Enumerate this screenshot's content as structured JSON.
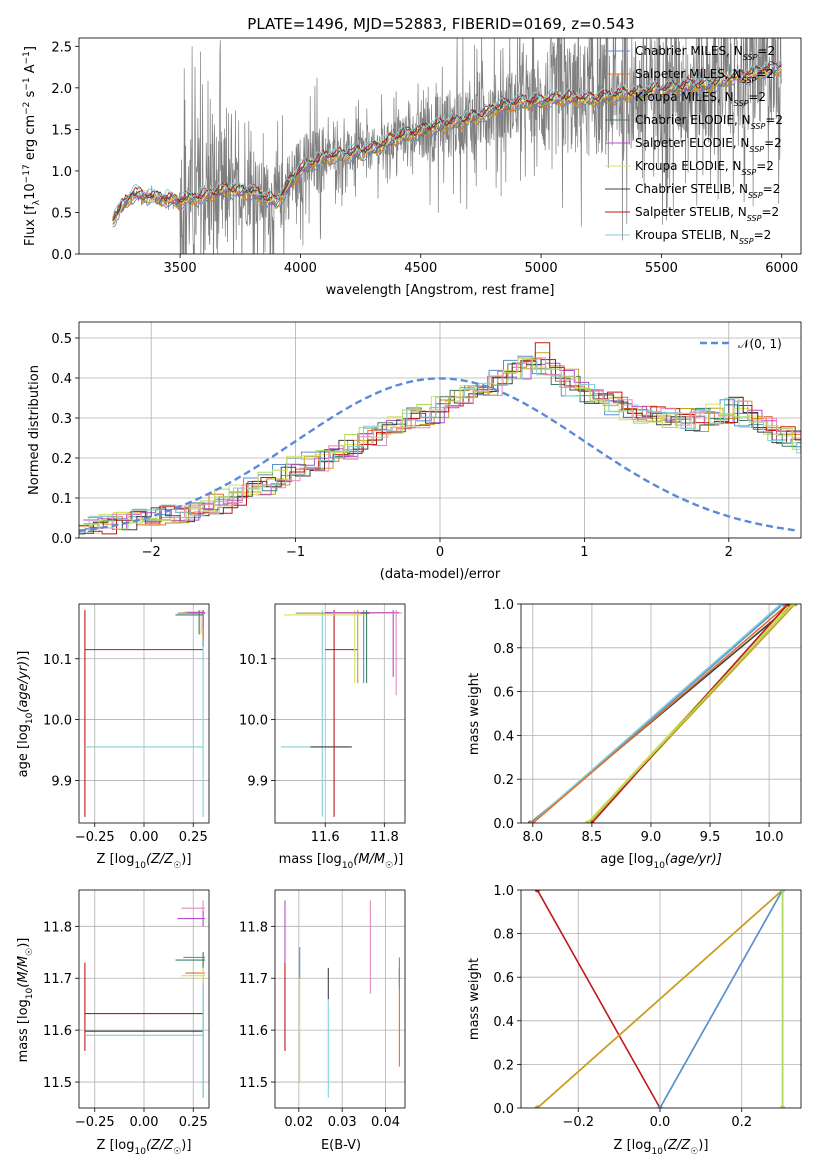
{
  "title": "PLATE=1496, MJD=52883, FIBERID=0169, z=0.543",
  "colors": {
    "Chabrier MILES": "#5a8fd0",
    "Salpeter MILES": "#e0702a",
    "Kroupa MILES": "#c8a020",
    "Chabrier ELODIE": "#3e7e68",
    "Salpeter ELODIE": "#b44ec8",
    "Kroupa ELODIE": "#d8e060",
    "Chabrier STELIB": "#404040",
    "Salpeter STELIB": "#c01818",
    "Kroupa STELIB": "#80d0d8",
    "pink": "#e888b8",
    "lime": "#b0d860",
    "data": "#7f7f7f",
    "normal": "#5b8bd6"
  },
  "chart_data": [
    {
      "id": "spectrum",
      "type": "line",
      "xlabel": "wavelength [Angstrom, rest frame]",
      "ylabel": "Flux [f_λ 10^-17 erg cm^-2 s^-1 A^-1]",
      "xlim": [
        3080,
        6080
      ],
      "ylim": [
        0,
        2.6
      ],
      "xticks": [
        3500,
        4000,
        4500,
        5000,
        5500,
        6000
      ],
      "yticks": [
        0.0,
        0.5,
        1.0,
        1.5,
        2.0,
        2.5
      ],
      "grid": false,
      "legend_position": "top-right",
      "legend": [
        {
          "pre": "Chabrier MILES, N",
          "sub": "SSP",
          "post": "=2",
          "color": "Chabrier MILES"
        },
        {
          "pre": "Salpeter MILES, N",
          "sub": "SSP",
          "post": "=2",
          "color": "Salpeter MILES"
        },
        {
          "pre": "Kroupa MILES, N",
          "sub": "SSP",
          "post": "=2",
          "color": "Kroupa MILES"
        },
        {
          "pre": "Chabrier ELODIE, N",
          "sub": "SSP",
          "post": "=2",
          "color": "Chabrier ELODIE"
        },
        {
          "pre": "Salpeter ELODIE, N",
          "sub": "SSP",
          "post": "=2",
          "color": "Salpeter ELODIE"
        },
        {
          "pre": "Kroupa ELODIE, N",
          "sub": "SSP",
          "post": "=2",
          "color": "Kroupa ELODIE"
        },
        {
          "pre": "Chabrier STELIB, N",
          "sub": "SSP",
          "post": "=2",
          "color": "Chabrier STELIB"
        },
        {
          "pre": "Salpeter STELIB, N",
          "sub": "SSP",
          "post": "=2",
          "color": "Salpeter STELIB"
        },
        {
          "pre": "Kroupa STELIB, N",
          "sub": "SSP",
          "post": "=2",
          "color": "Kroupa STELIB"
        }
      ],
      "model_anchor_x": [
        3220,
        3300,
        3400,
        3500,
        3600,
        3700,
        3800,
        3900,
        4000,
        4100,
        4200,
        4300,
        4400,
        4500,
        4600,
        4700,
        4800,
        4900,
        5000,
        5100,
        5200,
        5300,
        5400,
        5500,
        5600,
        5700,
        5800,
        5900,
        6000
      ],
      "model_anchor_y": [
        0.42,
        0.72,
        0.68,
        0.64,
        0.7,
        0.78,
        0.74,
        0.62,
        1.02,
        1.16,
        1.2,
        1.26,
        1.4,
        1.48,
        1.56,
        1.62,
        1.74,
        1.82,
        1.84,
        1.88,
        1.86,
        1.9,
        1.94,
        1.98,
        2.02,
        2.04,
        2.12,
        2.18,
        2.26
      ],
      "data_range": [
        3200,
        6000
      ],
      "data_noise_note": "",
      "model_series": [
        "Chabrier MILES",
        "Salpeter MILES",
        "Kroupa MILES",
        "Chabrier ELODIE",
        "Salpeter ELODIE",
        "Kroupa ELODIE",
        "Chabrier STELIB",
        "Salpeter STELIB",
        "Kroupa STELIB"
      ]
    },
    {
      "id": "residuals",
      "type": "line",
      "xlabel": "(data-model)/error",
      "ylabel": "Normed distribution",
      "xlim": [
        -2.5,
        2.5
      ],
      "ylim": [
        0,
        0.54
      ],
      "xticks": [
        -2,
        -1,
        0,
        1,
        2
      ],
      "yticks": [
        0.0,
        0.1,
        0.2,
        0.3,
        0.4,
        0.5
      ],
      "grid": true,
      "legend_position": "top-right",
      "normal_label": "𝒩(0, 1)",
      "bin_width": 0.1,
      "bin_start": -2.5,
      "hist_base": [
        0.03,
        0.035,
        0.04,
        0.045,
        0.05,
        0.055,
        0.06,
        0.065,
        0.075,
        0.085,
        0.1,
        0.115,
        0.13,
        0.14,
        0.16,
        0.18,
        0.19,
        0.21,
        0.22,
        0.24,
        0.255,
        0.27,
        0.28,
        0.3,
        0.31,
        0.33,
        0.35,
        0.37,
        0.38,
        0.4,
        0.42,
        0.45,
        0.43,
        0.4,
        0.38,
        0.36,
        0.35,
        0.33,
        0.32,
        0.31,
        0.3,
        0.3,
        0.29,
        0.3,
        0.31,
        0.33,
        0.3,
        0.28,
        0.26,
        0.25,
        0.23,
        0.22,
        0.2,
        0.18,
        0.16,
        0.14,
        0.12,
        0.11,
        0.1,
        0.09,
        0.085,
        0.08,
        0.075,
        0.07,
        0.065,
        0.06
      ],
      "hist_series": [
        "Chabrier MILES",
        "Salpeter MILES",
        "Kroupa MILES",
        "Chabrier ELODIE",
        "Salpeter ELODIE",
        "Kroupa ELODIE",
        "Chabrier STELIB",
        "Salpeter STELIB",
        "Kroupa STELIB",
        "pink",
        "lime"
      ]
    },
    {
      "id": "age-vs-Z",
      "type": "scatter",
      "xlabel_pre": "Z [log",
      "xlabel_sub": "10",
      "xlabel_post": "(Z/Z",
      "xlabel_end": ")]",
      "ylabel": "age  [log10(age/yr)]",
      "xlim": [
        -0.33,
        0.33
      ],
      "ylim": [
        9.83,
        10.19
      ],
      "xticks": [
        -0.25,
        0.0,
        0.25
      ],
      "xtick_labels": [
        "−0.25",
        "0.00",
        "0.25"
      ],
      "yticks": [
        9.9,
        10.0,
        10.1
      ],
      "yticks_labels": [
        "9.9",
        "10.0",
        "10.1"
      ],
      "grid": true,
      "errorbars": [
        {
          "x": -0.3,
          "y": 10.115,
          "xmin": -0.3,
          "xmax": 0.3,
          "ymin": 9.84,
          "ymax": 10.18,
          "color": "Salpeter STELIB"
        },
        {
          "x": 0.3,
          "y": 9.955,
          "xmin": -0.3,
          "xmax": 0.3,
          "ymin": 9.84,
          "ymax": 10.18,
          "color": "Kroupa STELIB"
        },
        {
          "x": 0.3,
          "y": 10.175,
          "xmin": 0.17,
          "xmax": 0.31,
          "ymin": 10.12,
          "ymax": 10.18,
          "color": "Chabrier MILES"
        },
        {
          "x": 0.3,
          "y": 10.175,
          "xmin": 0.18,
          "xmax": 0.31,
          "ymin": 10.13,
          "ymax": 10.18,
          "color": "Salpeter MILES"
        },
        {
          "x": 0.29,
          "y": 10.177,
          "xmin": 0.2,
          "xmax": 0.31,
          "ymin": 10.14,
          "ymax": 10.18,
          "color": "Kroupa ELODIE"
        },
        {
          "x": 0.28,
          "y": 10.172,
          "xmin": 0.16,
          "xmax": 0.3,
          "ymin": 10.14,
          "ymax": 10.18,
          "color": "Chabrier ELODIE"
        },
        {
          "x": 0.3,
          "y": 10.176,
          "xmin": 0.22,
          "xmax": 0.31,
          "ymin": 10.15,
          "ymax": 10.18,
          "color": "Salpeter ELODIE"
        }
      ]
    },
    {
      "id": "age-vs-mass",
      "type": "scatter",
      "xlabel_pre": "mass [log",
      "xlabel_sub": "10",
      "xlabel_post": "(M/M",
      "xlabel_end": ")]",
      "xlim": [
        11.43,
        11.87
      ],
      "ylim": [
        9.83,
        10.19
      ],
      "xticks": [
        11.6,
        11.8
      ],
      "xtick_labels": [
        "11.6",
        "11.8"
      ],
      "yticks": [
        9.9,
        10.0,
        10.1
      ],
      "yticks_labels": [
        "9.9",
        "10.0",
        "10.1"
      ],
      "grid": true,
      "errorbars": [
        {
          "x": 11.63,
          "y": 10.115,
          "xmin": 11.6,
          "xmax": 11.71,
          "ymin": 9.84,
          "ymax": 10.18,
          "color": "Salpeter STELIB"
        },
        {
          "x": 11.59,
          "y": 9.955,
          "xmin": 11.45,
          "xmax": 11.68,
          "ymin": 9.84,
          "ymax": 10.18,
          "color": "Kroupa STELIB"
        },
        {
          "x": 11.6,
          "y": 9.955,
          "xmin": 11.55,
          "xmax": 11.69,
          "ymin": 9.955,
          "ymax": 9.955,
          "color": "Chabrier STELIB"
        },
        {
          "x": 11.73,
          "y": 10.175,
          "xmin": 11.5,
          "xmax": 11.75,
          "ymin": 10.06,
          "ymax": 10.18,
          "color": "Chabrier MILES"
        },
        {
          "x": 11.71,
          "y": 10.175,
          "xmin": 11.52,
          "xmax": 11.75,
          "ymin": 10.06,
          "ymax": 10.18,
          "color": "Kroupa MILES"
        },
        {
          "x": 11.7,
          "y": 10.172,
          "xmin": 11.46,
          "xmax": 11.74,
          "ymin": 10.06,
          "ymax": 10.18,
          "color": "Kroupa ELODIE"
        },
        {
          "x": 11.83,
          "y": 10.176,
          "xmin": 11.6,
          "xmax": 11.85,
          "ymin": 10.07,
          "ymax": 10.18,
          "color": "Salpeter ELODIE"
        },
        {
          "x": 11.84,
          "y": 10.175,
          "xmin": 11.62,
          "xmax": 11.86,
          "ymin": 10.04,
          "ymax": 10.18,
          "color": "pink"
        },
        {
          "x": 11.74,
          "y": 10.175,
          "xmin": 11.72,
          "xmax": 11.75,
          "ymin": 10.06,
          "ymax": 10.18,
          "color": "Chabrier ELODIE"
        }
      ]
    },
    {
      "id": "weight-vs-age",
      "type": "line",
      "xlabel_pre": "age  [log",
      "xlabel_sub": "10",
      "xlabel_post": "(age/yr)]",
      "ylabel": "mass weight",
      "xlim": [
        7.9,
        10.27
      ],
      "ylim": [
        0,
        1.0
      ],
      "xticks": [
        8.0,
        8.5,
        9.0,
        9.5,
        10.0
      ],
      "xtick_labels": [
        "8.0",
        "8.5",
        "9.0",
        "9.5",
        "10.0"
      ],
      "yticks": [
        0.0,
        0.2,
        0.4,
        0.6,
        0.8,
        1.0
      ],
      "yticks_labels": [
        "0.0",
        "0.2",
        "0.4",
        "0.6",
        "0.8",
        "1.0"
      ],
      "grid": true,
      "lines": [
        {
          "x": [
            7.98,
            10.2
          ],
          "y": [
            0,
            1.0
          ],
          "color": "Chabrier STELIB"
        },
        {
          "x": [
            8.0,
            10.12
          ],
          "y": [
            0,
            1.0
          ],
          "color": "Chabrier MILES"
        },
        {
          "x": [
            7.99,
            10.1
          ],
          "y": [
            0,
            1.0
          ],
          "color": "Kroupa STELIB"
        },
        {
          "x": [
            8.0,
            10.16
          ],
          "y": [
            0,
            1.0
          ],
          "color": "Salpeter MILES"
        },
        {
          "x": [
            8.46,
            10.18
          ],
          "y": [
            0,
            1.0
          ],
          "color": "Kroupa ELODIE"
        },
        {
          "x": [
            8.48,
            10.22
          ],
          "y": [
            0,
            1.0
          ],
          "color": "Kroupa MILES"
        },
        {
          "x": [
            8.5,
            10.16
          ],
          "y": [
            0,
            1.0
          ],
          "color": "Salpeter STELIB"
        },
        {
          "x": [
            8.47,
            10.2
          ],
          "y": [
            0,
            1.0
          ],
          "color": "lime"
        }
      ]
    },
    {
      "id": "mass-vs-Z",
      "type": "scatter",
      "xlabel_pre": "Z [log",
      "xlabel_sub": "10",
      "xlabel_post": "(Z/Z",
      "xlabel_end": ")]",
      "ylabel": "mass [log10(M/M☉)]",
      "xlim": [
        -0.33,
        0.33
      ],
      "ylim": [
        11.45,
        11.87
      ],
      "xticks": [
        -0.25,
        0.0,
        0.25
      ],
      "xtick_labels": [
        "−0.25",
        "0.00",
        "0.25"
      ],
      "yticks": [
        11.5,
        11.6,
        11.7,
        11.8
      ],
      "yticks_labels": [
        "11.5",
        "11.6",
        "11.7",
        "11.8"
      ],
      "grid": true,
      "errorbars": [
        {
          "x": -0.3,
          "y": 11.632,
          "xmin": -0.3,
          "xmax": 0.3,
          "ymin": 11.56,
          "ymax": 11.73,
          "color": "Salpeter STELIB"
        },
        {
          "x": 0.3,
          "y": 11.598,
          "xmin": -0.3,
          "xmax": 0.3,
          "ymin": 11.47,
          "ymax": 11.7,
          "color": "Chabrier STELIB"
        },
        {
          "x": 0.3,
          "y": 11.59,
          "xmin": -0.3,
          "xmax": 0.3,
          "ymin": 11.47,
          "ymax": 11.69,
          "color": "Kroupa STELIB"
        },
        {
          "x": 0.3,
          "y": 11.835,
          "xmin": 0.19,
          "xmax": 0.31,
          "ymin": 11.82,
          "ymax": 11.85,
          "color": "pink"
        },
        {
          "x": 0.3,
          "y": 11.815,
          "xmin": 0.17,
          "xmax": 0.31,
          "ymin": 11.8,
          "ymax": 11.83,
          "color": "Salpeter ELODIE"
        },
        {
          "x": 0.3,
          "y": 11.74,
          "xmin": 0.2,
          "xmax": 0.31,
          "ymin": 11.72,
          "ymax": 11.75,
          "color": "Chabrier MILES"
        },
        {
          "x": 0.3,
          "y": 11.735,
          "xmin": 0.16,
          "xmax": 0.31,
          "ymin": 11.72,
          "ymax": 11.75,
          "color": "Chabrier ELODIE"
        },
        {
          "x": 0.3,
          "y": 11.71,
          "xmin": 0.21,
          "xmax": 0.31,
          "ymin": 11.7,
          "ymax": 11.72,
          "color": "Salpeter MILES"
        },
        {
          "x": 0.3,
          "y": 11.705,
          "xmin": 0.19,
          "xmax": 0.31,
          "ymin": 11.69,
          "ymax": 11.72,
          "color": "Kroupa ELODIE"
        }
      ]
    },
    {
      "id": "mass-vs-EBV",
      "type": "scatter",
      "xlabel": "E(B-V)",
      "xlim": [
        0.0145,
        0.0445
      ],
      "ylim": [
        11.45,
        11.87
      ],
      "xticks": [
        0.02,
        0.03,
        0.04
      ],
      "xtick_labels": [
        "0.02",
        "0.03",
        "0.04"
      ],
      "yticks": [
        11.5,
        11.6,
        11.7,
        11.8
      ],
      "yticks_labels": [
        "11.5",
        "11.6",
        "11.7",
        "11.8"
      ],
      "grid": true,
      "errorbars": [
        {
          "x": 0.0168,
          "y": 11.63,
          "ymin": 11.56,
          "ymax": 11.73,
          "color": "Salpeter STELIB"
        },
        {
          "x": 0.0168,
          "y": 11.82,
          "ymin": 11.73,
          "ymax": 11.85,
          "color": "Salpeter ELODIE"
        },
        {
          "x": 0.0202,
          "y": 11.6,
          "ymin": 11.5,
          "ymax": 11.7,
          "color": "Kroupa ELODIE"
        },
        {
          "x": 0.0202,
          "y": 11.74,
          "ymin": 11.7,
          "ymax": 11.76,
          "color": "Chabrier MILES"
        },
        {
          "x": 0.0268,
          "y": 11.59,
          "ymin": 11.47,
          "ymax": 11.66,
          "color": "Kroupa STELIB"
        },
        {
          "x": 0.0268,
          "y": 11.7,
          "ymin": 11.66,
          "ymax": 11.72,
          "color": "Chabrier STELIB"
        },
        {
          "x": 0.0365,
          "y": 11.76,
          "ymin": 11.67,
          "ymax": 11.85,
          "color": "pink"
        },
        {
          "x": 0.0432,
          "y": 11.65,
          "ymin": 11.53,
          "ymax": 11.72,
          "color": "Salpeter MILES"
        },
        {
          "x": 0.0432,
          "y": 11.7,
          "ymin": 11.68,
          "ymax": 11.74,
          "color": "Chabrier MILES"
        }
      ]
    },
    {
      "id": "weight-vs-Z",
      "type": "line",
      "xlabel_pre": "Z [log",
      "xlabel_sub": "10",
      "xlabel_post": "(Z/Z",
      "xlabel_end": ")]",
      "ylabel": "mass weight",
      "xlim": [
        -0.34,
        0.345
      ],
      "ylim": [
        0,
        1.0
      ],
      "xticks": [
        -0.2,
        0.0,
        0.2
      ],
      "xtick_labels": [
        "−0.2",
        "0.0",
        "0.2"
      ],
      "yticks": [
        0.0,
        0.2,
        0.4,
        0.6,
        0.8,
        1.0
      ],
      "yticks_labels": [
        "0.0",
        "0.2",
        "0.4",
        "0.6",
        "0.8",
        "1.0"
      ],
      "grid": true,
      "lines": [
        {
          "x": [
            -0.3,
            0.0
          ],
          "y": [
            1.0,
            0.0
          ],
          "color": "Salpeter STELIB"
        },
        {
          "x": [
            -0.3,
            0.3
          ],
          "y": [
            0.0,
            1.0
          ],
          "color": "Salpeter MILES"
        },
        {
          "x": [
            -0.3,
            0.3
          ],
          "y": [
            0.0,
            1.0
          ],
          "color": "Kroupa MILES"
        },
        {
          "x": [
            0.0,
            0.3
          ],
          "y": [
            0.0,
            1.0
          ],
          "color": "Kroupa STELIB"
        },
        {
          "x": [
            0.0,
            0.3
          ],
          "y": [
            0.0,
            1.0
          ],
          "color": "Chabrier MILES"
        },
        {
          "x": [
            0.3,
            0.3
          ],
          "y": [
            0.0,
            1.0
          ],
          "color": "Kroupa ELODIE"
        },
        {
          "x": [
            0.3,
            0.3
          ],
          "y": [
            0.0,
            1.0
          ],
          "color": "lime"
        }
      ]
    }
  ]
}
